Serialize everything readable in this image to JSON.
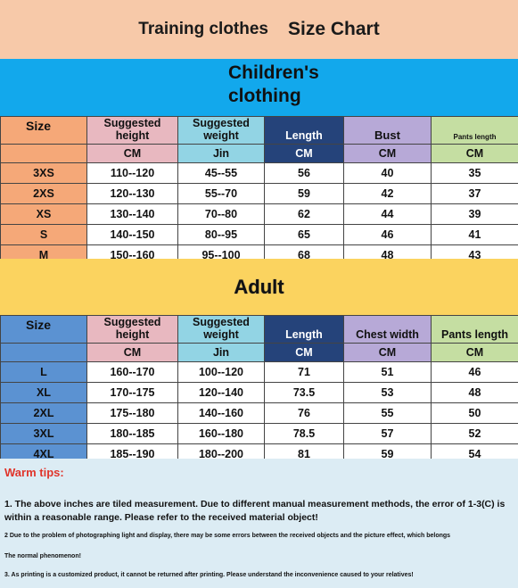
{
  "title": {
    "product": "Training clothes",
    "chart": "Size Chart"
  },
  "children": {
    "heading_line1": "Children's",
    "heading_line2": "clothing",
    "headers": [
      "Size",
      "Suggested height",
      "Suggested weight",
      "Length",
      "Bust",
      "Pants length"
    ],
    "units": [
      "",
      "CM",
      "Jin",
      "CM",
      "CM",
      "CM"
    ],
    "rows": [
      [
        "3XS",
        "110--120",
        "45--55",
        "56",
        "40",
        "35"
      ],
      [
        "2XS",
        "120--130",
        "55--70",
        "59",
        "42",
        "37"
      ],
      [
        "XS",
        "130--140",
        "70--80",
        "62",
        "44",
        "39"
      ],
      [
        "S",
        "140--150",
        "80--95",
        "65",
        "46",
        "41"
      ],
      [
        "M",
        "150--160",
        "95--100",
        "68",
        "48",
        "43"
      ]
    ]
  },
  "adult": {
    "heading": "Adult",
    "headers": [
      "Size",
      "Suggested height",
      "Suggested weight",
      "Length",
      "Chest width",
      "Pants length"
    ],
    "units": [
      "",
      "CM",
      "Jin",
      "CM",
      "CM",
      "CM"
    ],
    "rows": [
      [
        "L",
        "160--170",
        "100--120",
        "71",
        "51",
        "46"
      ],
      [
        "XL",
        "170--175",
        "120--140",
        "73.5",
        "53",
        "48"
      ],
      [
        "2XL",
        "175--180",
        "140--160",
        "76",
        "55",
        "50"
      ],
      [
        "3XL",
        "180--185",
        "160--180",
        "78.5",
        "57",
        "52"
      ],
      [
        "4XL",
        "185--190",
        "180--200",
        "81",
        "59",
        "54"
      ]
    ]
  },
  "tips": {
    "title": "Warm tips:",
    "tip1": "1. The above inches are tiled measurement. Due to different manual measurement methods, the error of 1-3(C) is within a reasonable range. Please refer to the received material object!",
    "tip2": "2 Due to the problem of photographing light and display, there may be some errors between the received objects and the picture effect, which belongs",
    "tip2b": "The normal phenomenon!",
    "tip3": "3. As printing is a customized product, it cannot be returned after printing. Please understand the inconvenience caused to your relatives!"
  },
  "colors": {
    "title_bg": "#f7c9a9",
    "children_bg": "#12a8ec",
    "adult_bg": "#fbd35f",
    "tips_bg": "#dcecf4",
    "warn_color": "#e0342a"
  }
}
